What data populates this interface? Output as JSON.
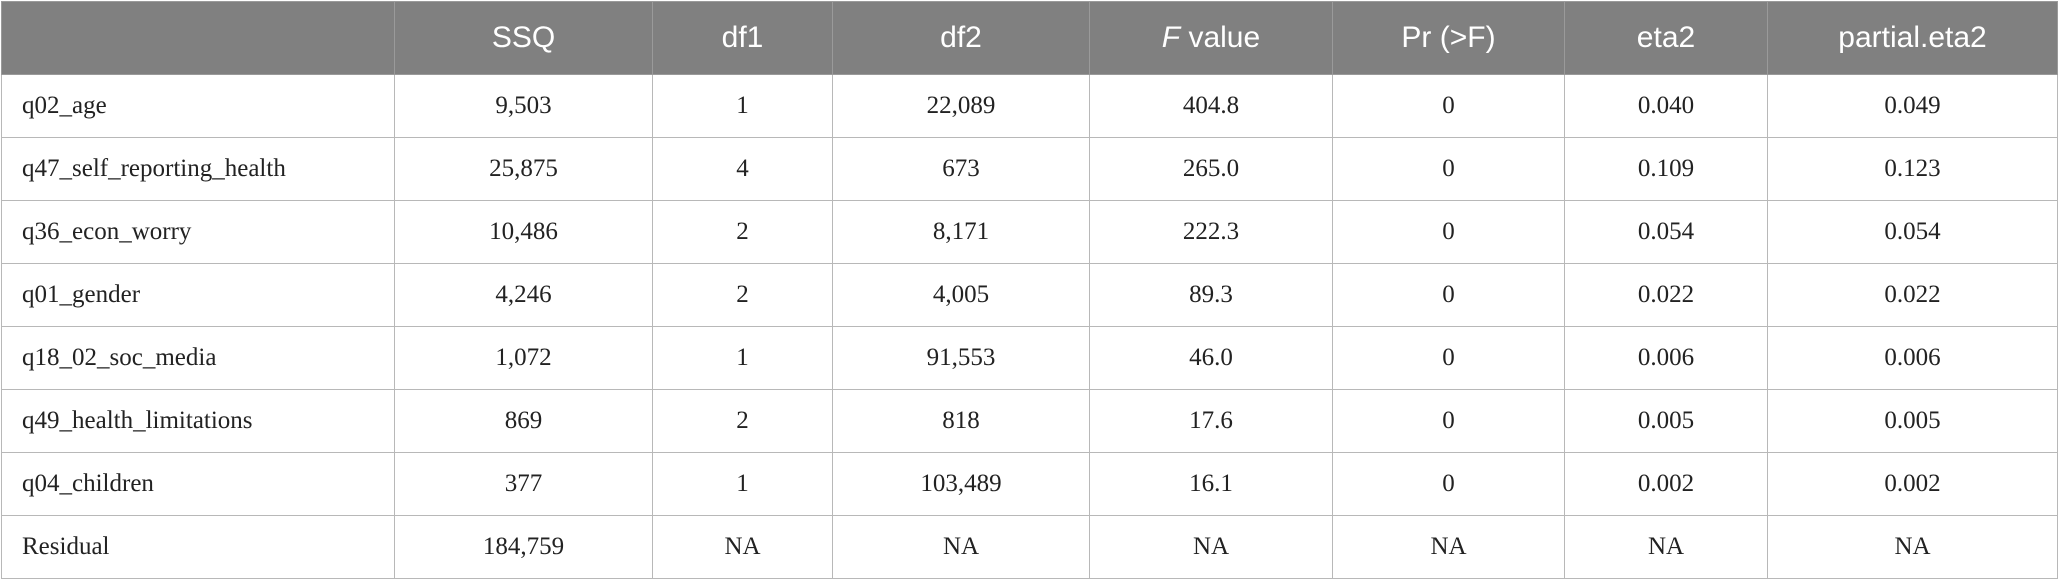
{
  "table": {
    "header": [
      "",
      "SSQ",
      "df1",
      "df2",
      "F value",
      "Pr (>F)",
      "eta2",
      "partial.eta2"
    ],
    "rows": [
      [
        "q02_age",
        "9,503",
        "1",
        "22,089",
        "404.8",
        "0",
        "0.040",
        "0.049"
      ],
      [
        "q47_self_reporting_health",
        "25,875",
        "4",
        "673",
        "265.0",
        "0",
        "0.109",
        "0.123"
      ],
      [
        "q36_econ_worry",
        "10,486",
        "2",
        "8,171",
        "222.3",
        "0",
        "0.054",
        "0.054"
      ],
      [
        "q01_gender",
        "4,246",
        "2",
        "4,005",
        "89.3",
        "0",
        "0.022",
        "0.022"
      ],
      [
        "q18_02_soc_media",
        "1,072",
        "1",
        "91,553",
        "46.0",
        "0",
        "0.006",
        "0.006"
      ],
      [
        "q49_health_limitations",
        "869",
        "2",
        "818",
        "17.6",
        "0",
        "0.005",
        "0.005"
      ],
      [
        "q04_children",
        "377",
        "1",
        "103,489",
        "16.1",
        "0",
        "0.002",
        "0.002"
      ],
      [
        "Residual",
        "184,759",
        "NA",
        "NA",
        "NA",
        "NA",
        "NA",
        "NA"
      ]
    ]
  }
}
